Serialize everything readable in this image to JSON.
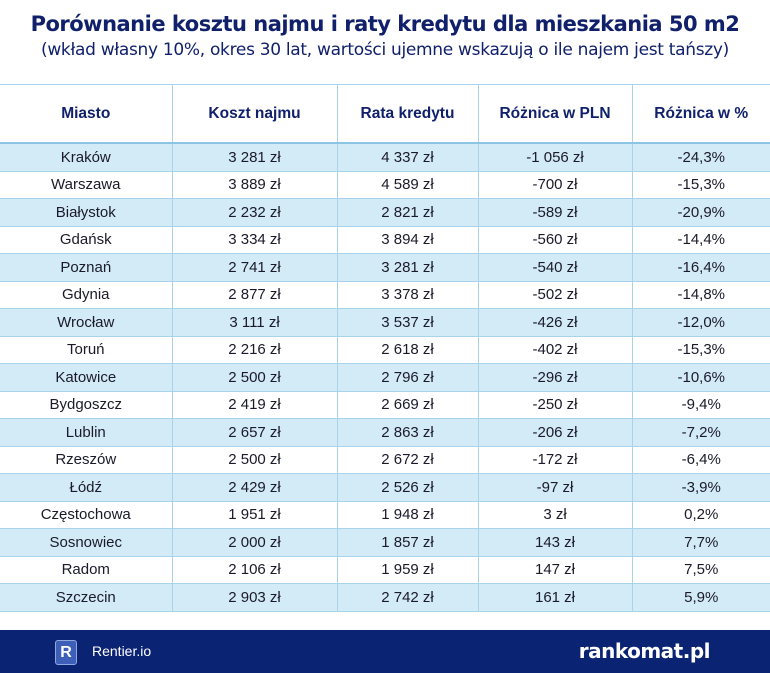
{
  "chart_data": {
    "type": "table",
    "title": "Porównanie kosztu najmu i raty kredytu dla mieszkania 50 m2",
    "subtitle": "(wkład własny 10%, okres 30 lat, wartości ujemne wskazują o ile najem jest tańszy)",
    "columns": [
      "Miasto",
      "Koszt najmu",
      "Rata kredytu",
      "Różnica w PLN",
      "Różnica w %"
    ],
    "rows": [
      [
        "Kraków",
        "3 281 zł",
        "4 337 zł",
        "-1 056 zł",
        "-24,3%"
      ],
      [
        "Warszawa",
        "3 889 zł",
        "4 589 zł",
        "-700 zł",
        "-15,3%"
      ],
      [
        "Białystok",
        "2 232 zł",
        "2 821 zł",
        "-589 zł",
        "-20,9%"
      ],
      [
        "Gdańsk",
        "3 334 zł",
        "3 894 zł",
        "-560 zł",
        "-14,4%"
      ],
      [
        "Poznań",
        "2 741 zł",
        "3 281 zł",
        "-540 zł",
        "-16,4%"
      ],
      [
        "Gdynia",
        "2 877 zł",
        "3 378 zł",
        "-502 zł",
        "-14,8%"
      ],
      [
        "Wrocław",
        "3 111 zł",
        "3 537 zł",
        "-426 zł",
        "-12,0%"
      ],
      [
        "Toruń",
        "2 216 zł",
        "2 618 zł",
        "-402 zł",
        "-15,3%"
      ],
      [
        "Katowice",
        "2 500 zł",
        "2 796 zł",
        "-296 zł",
        "-10,6%"
      ],
      [
        "Bydgoszcz",
        "2 419 zł",
        "2 669 zł",
        "-250 zł",
        "-9,4%"
      ],
      [
        "Lublin",
        "2 657 zł",
        "2 863 zł",
        "-206 zł",
        "-7,2%"
      ],
      [
        "Rzeszów",
        "2 500 zł",
        "2 672 zł",
        "-172 zł",
        "-6,4%"
      ],
      [
        "Łódź",
        "2 429 zł",
        "2 526 zł",
        "-97 zł",
        "-3,9%"
      ],
      [
        "Częstochowa",
        "1 951 zł",
        "1 948 zł",
        "3 zł",
        "0,2%"
      ],
      [
        "Sosnowiec",
        "2 000 zł",
        "1 857 zł",
        "143 zł",
        "7,7%"
      ],
      [
        "Radom",
        "2 106 zł",
        "1 959 zł",
        "147 zł",
        "7,5%"
      ],
      [
        "Szczecin",
        "2 903 zł",
        "2 742 zł",
        "161 zł",
        "5,9%"
      ]
    ]
  },
  "footer": {
    "left_logo_letter": "R",
    "left_brand": "Rentier.io",
    "right_brand": "rankomat.pl"
  },
  "colors": {
    "header_text": "#10206b",
    "stripe": "#d3eaf7",
    "footer_bg": "#0b2373",
    "border": "#a9d3eb"
  }
}
